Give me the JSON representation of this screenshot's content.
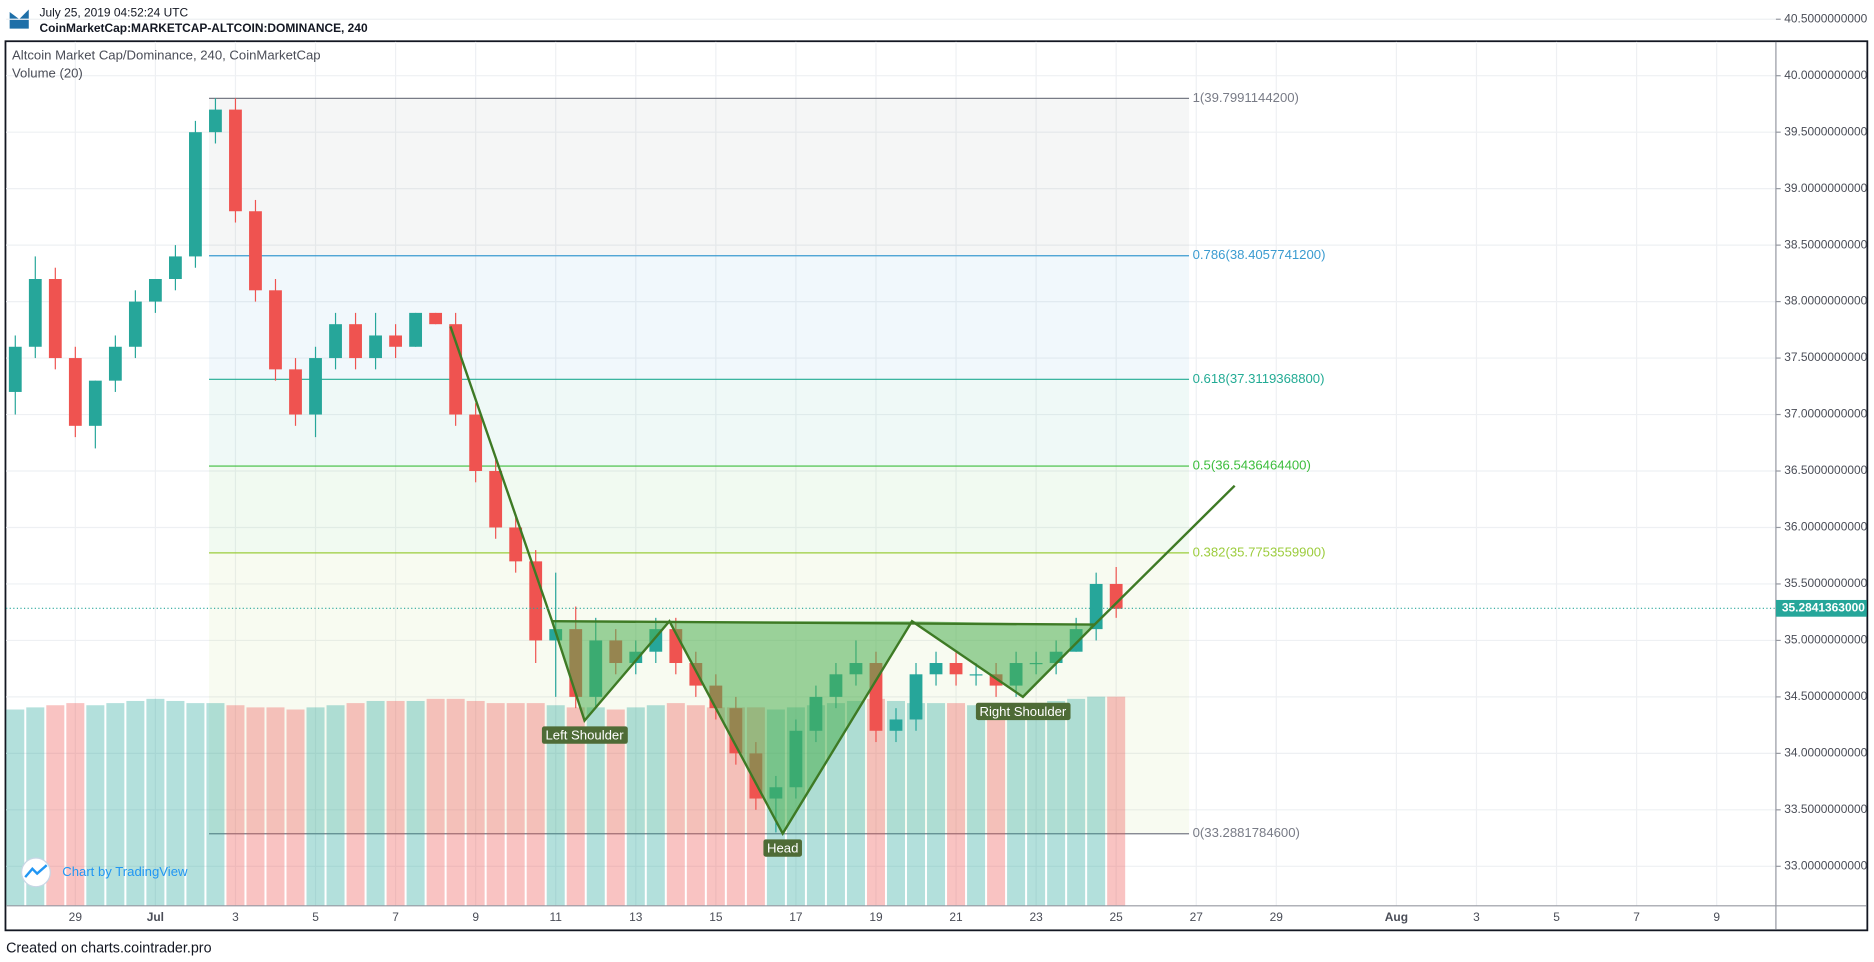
{
  "header": {
    "timestamp": "July 25, 2019 04:52:24 UTC",
    "symbol": "CoinMarketCap:MARKETCAP-ALTCOIN:DOMINANCE, 240"
  },
  "footer": "Created on charts.cointrader.pro",
  "chart_data": {
    "type": "candlestick",
    "volume_label": "Volume (20)",
    "branding": "Chart by TradingView",
    "series": [
      {
        "name": "Altcoin Market Cap/Dominance, 240, CoinMarketCap",
        "up_color": "#26a69a",
        "down_color": "#ef5350",
        "x": [
          -2.5,
          -2,
          -1.5,
          -1,
          -0.5,
          0,
          0.5,
          1,
          1.5,
          2,
          2.5,
          3,
          3.5,
          4,
          4.5,
          5,
          5.5,
          6,
          6.5,
          7,
          7.5,
          8,
          8.5,
          9,
          9.5,
          10,
          10.5,
          11,
          11.5,
          12,
          12.5,
          13,
          13.5,
          14,
          14.5,
          15,
          15.5,
          16,
          16.5,
          17,
          17.5,
          18,
          18.5,
          19,
          19.5,
          20,
          20.5,
          21,
          21.5,
          22,
          22.5,
          23,
          23.5,
          24,
          24.5,
          25
        ],
        "open": [
          37.2,
          37.6,
          38.2,
          37.5,
          36.9,
          37.3,
          37.6,
          38.0,
          38.2,
          38.4,
          39.5,
          39.7,
          38.8,
          38.1,
          37.4,
          37.0,
          37.5,
          37.8,
          37.5,
          37.7,
          37.6,
          37.9,
          37.8,
          37.0,
          36.5,
          36.0,
          35.7,
          35.0,
          35.1,
          34.5,
          35.0,
          34.8,
          34.9,
          35.1,
          34.8,
          34.6,
          34.4,
          34.0,
          33.6,
          33.7,
          34.2,
          34.5,
          34.7,
          34.8,
          34.2,
          34.3,
          34.7,
          34.8,
          34.7,
          34.7,
          34.6,
          34.8,
          34.8,
          34.9,
          35.1,
          35.5
        ],
        "high": [
          37.7,
          38.4,
          38.3,
          37.6,
          37.3,
          37.7,
          38.1,
          38.2,
          38.5,
          39.6,
          39.8,
          39.8,
          38.9,
          38.2,
          37.5,
          37.6,
          37.9,
          37.9,
          37.9,
          37.8,
          37.9,
          37.9,
          37.9,
          37.1,
          36.6,
          36.1,
          35.8,
          35.6,
          35.3,
          35.2,
          35.1,
          35.0,
          35.2,
          35.2,
          34.9,
          34.7,
          34.5,
          34.1,
          33.8,
          34.3,
          34.6,
          34.8,
          35.0,
          34.9,
          34.4,
          34.8,
          34.9,
          34.9,
          34.8,
          34.8,
          34.9,
          34.9,
          35.0,
          35.2,
          35.6,
          35.65
        ],
        "low": [
          37.0,
          37.5,
          37.4,
          36.8,
          36.7,
          37.2,
          37.5,
          37.9,
          38.1,
          38.3,
          39.4,
          38.7,
          38.0,
          37.3,
          36.9,
          36.8,
          37.4,
          37.4,
          37.4,
          37.5,
          37.6,
          37.8,
          36.9,
          36.4,
          35.9,
          35.6,
          34.8,
          34.5,
          34.4,
          34.4,
          34.7,
          34.7,
          34.8,
          34.7,
          34.5,
          34.3,
          33.9,
          33.5,
          33.3,
          33.6,
          34.1,
          34.4,
          34.6,
          34.1,
          34.1,
          34.2,
          34.6,
          34.6,
          34.6,
          34.5,
          34.5,
          34.7,
          34.7,
          34.9,
          35.0,
          35.2
        ],
        "close": [
          37.6,
          38.2,
          37.5,
          36.9,
          37.3,
          37.6,
          38.0,
          38.2,
          38.4,
          39.5,
          39.7,
          38.8,
          38.1,
          37.4,
          37.0,
          37.5,
          37.8,
          37.5,
          37.7,
          37.6,
          37.9,
          37.8,
          37.0,
          36.5,
          36.0,
          35.7,
          35.0,
          35.1,
          34.5,
          35.0,
          34.8,
          34.9,
          35.1,
          34.8,
          34.6,
          34.4,
          34.0,
          33.6,
          33.7,
          34.2,
          34.5,
          34.7,
          34.8,
          34.2,
          34.3,
          34.7,
          34.8,
          34.7,
          34.7,
          34.6,
          34.8,
          34.8,
          34.9,
          35.1,
          35.5,
          35.28
        ],
        "volume": [
          92,
          93,
          94,
          95,
          94,
          95,
          96,
          97,
          96,
          95,
          95,
          94,
          93,
          93,
          92,
          93,
          94,
          95,
          96,
          96,
          96,
          97,
          97,
          96,
          95,
          95,
          95,
          94,
          93,
          93,
          92,
          93,
          94,
          95,
          94,
          93,
          93,
          93,
          92,
          93,
          94,
          95,
          96,
          97,
          96,
          95,
          95,
          95,
          94,
          88,
          94,
          95,
          96,
          97,
          98,
          98
        ]
      }
    ],
    "last_price": {
      "value": 35.2841363,
      "label": "35.2841363000",
      "color": "#26a69a"
    },
    "fibonacci": {
      "x": [
        2.34,
        26.82
      ],
      "levels": [
        {
          "value": 39.79911442,
          "label": "1(39.7991144200)",
          "color": "#787b86"
        },
        {
          "value": 38.40577412,
          "label": "0.786(38.4057741200)",
          "color": "#3a9bd0"
        },
        {
          "value": 37.31193688,
          "label": "0.618(37.3119368800)",
          "color": "#22ab94"
        },
        {
          "value": 36.54364644,
          "label": "0.5(36.5436464400)",
          "color": "#3cbd3c"
        },
        {
          "value": 35.77535599,
          "label": "0.382(35.7753559900)",
          "color": "#9ccc3c"
        },
        {
          "value": 33.28817846,
          "label": "0(33.2881784600)",
          "color": "#787b86"
        }
      ]
    },
    "pattern": {
      "color": "#3e7a25",
      "points": [
        [
          8.37,
          37.78
        ],
        [
          10.91,
          35.17
        ],
        [
          11.72,
          34.29
        ],
        [
          13.84,
          35.17
        ],
        [
          16.67,
          33.29
        ],
        [
          19.9,
          35.17
        ],
        [
          22.67,
          34.5
        ],
        [
          24.46,
          35.14
        ],
        [
          27.96,
          36.37
        ]
      ],
      "annotations": [
        {
          "text": "Left Shoulder",
          "point": 2
        },
        {
          "text": "Head",
          "point": 4
        },
        {
          "text": "Right Shoulder",
          "point": 6
        }
      ]
    },
    "xlim": [
      -2.73,
      41.48
    ],
    "ylim": [
      32.65,
      40.3
    ],
    "xticks": [
      {
        "value": -1,
        "label": "29"
      },
      {
        "value": 1,
        "label": "Jul"
      },
      3,
      5,
      7,
      9,
      11,
      13,
      15,
      17,
      19,
      21,
      23,
      25,
      27,
      29,
      {
        "value": 32,
        "label": "Aug"
      },
      {
        "value": 34,
        "label": "3"
      },
      {
        "value": 36,
        "label": "5"
      },
      {
        "value": 38,
        "label": "7"
      },
      {
        "value": 40,
        "label": "9"
      }
    ],
    "yticks": [
      {
        "value": 33,
        "label": "33.0000000000"
      },
      {
        "value": 33.5,
        "label": "33.5000000000"
      },
      {
        "value": 34,
        "label": "34.0000000000"
      },
      {
        "value": 34.5,
        "label": "34.5000000000"
      },
      {
        "value": 35,
        "label": "35.0000000000"
      },
      {
        "value": 35.5,
        "label": "35.5000000000"
      },
      {
        "value": 36,
        "label": "36.0000000000"
      },
      {
        "value": 36.5,
        "label": "36.5000000000"
      },
      {
        "value": 37,
        "label": "37.0000000000"
      },
      {
        "value": 37.5,
        "label": "37.5000000000"
      },
      {
        "value": 38,
        "label": "38.0000000000"
      },
      {
        "value": 38.5,
        "label": "38.5000000000"
      },
      {
        "value": 39,
        "label": "39.0000000000"
      },
      {
        "value": 39.5,
        "label": "39.5000000000"
      },
      {
        "value": 40,
        "label": "40.0000000000"
      },
      {
        "value": 40.5,
        "label": "40.5000000000"
      }
    ],
    "grid": true
  }
}
